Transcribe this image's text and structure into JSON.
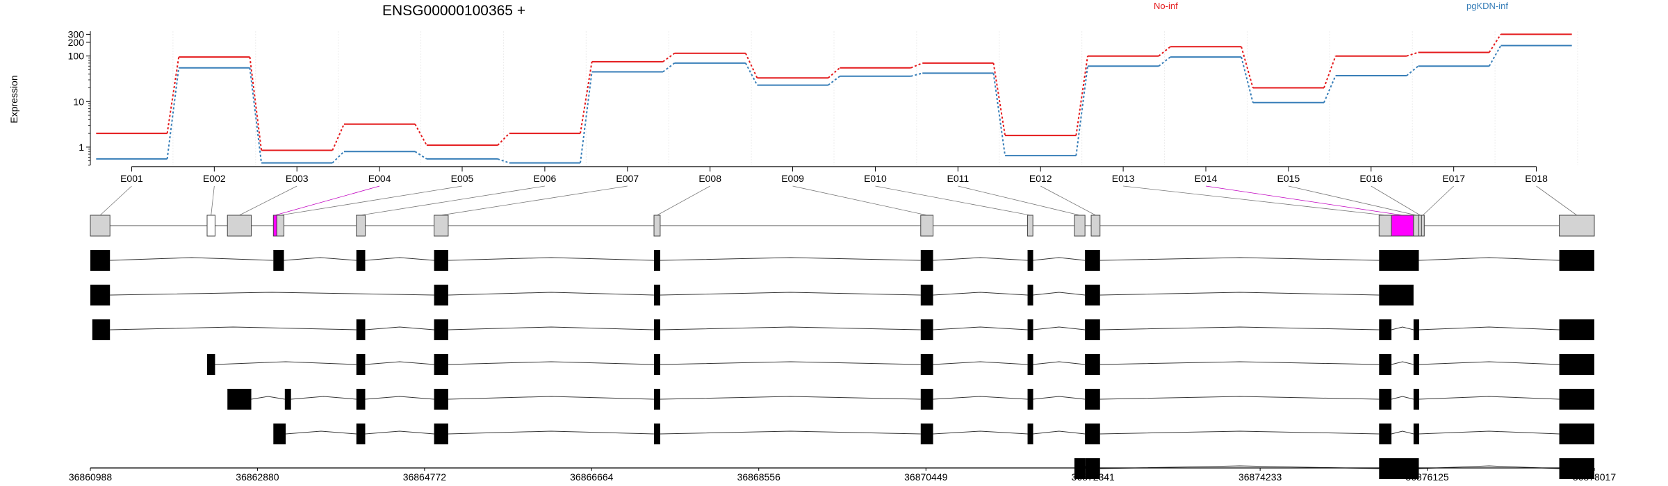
{
  "chart_data": {
    "type": "line",
    "title": "ENSG00000100365 +",
    "ylabel": "Expression",
    "yscale": "log",
    "ylim": [
      0.4,
      350
    ],
    "yticks": [
      1,
      10,
      100,
      200,
      300
    ],
    "categories": [
      "E001",
      "E002",
      "E003",
      "E004",
      "E005",
      "E006",
      "E007",
      "E008",
      "E009",
      "E010",
      "E011",
      "E012",
      "E013",
      "E014",
      "E015",
      "E016",
      "E017",
      "E018"
    ],
    "series": [
      {
        "name": "No-inf",
        "color": "#e41a1c",
        "values": [
          2.0,
          95,
          0.85,
          3.2,
          1.1,
          2.0,
          75,
          115,
          33,
          55,
          70,
          1.8,
          100,
          160,
          20,
          100,
          120,
          300
        ]
      },
      {
        "name": "pgKDN-inf",
        "color": "#377eb8",
        "values": [
          0.55,
          55,
          0.45,
          0.8,
          0.55,
          0.45,
          45,
          70,
          23,
          36,
          42,
          0.65,
          60,
          95,
          9.5,
          37,
          60,
          170
        ]
      }
    ],
    "legend_position": "top",
    "genomic_axis": {
      "min": 36860988,
      "max": 36878017,
      "ticks": [
        36860988,
        36862880,
        36864772,
        36866664,
        36868556,
        36870449,
        36872341,
        36874233,
        36876125,
        36878017
      ]
    },
    "exons": [
      {
        "id": "E001",
        "start": 36860988,
        "end": 36861210
      },
      {
        "id": "E002",
        "start": 36862310,
        "end": 36862400
      },
      {
        "id": "E003",
        "start": 36862540,
        "end": 36862810
      },
      {
        "id": "E004",
        "start": 36863060,
        "end": 36863100
      },
      {
        "id": "E005",
        "start": 36863100,
        "end": 36863180
      },
      {
        "id": "E006",
        "start": 36864000,
        "end": 36864100
      },
      {
        "id": "E007",
        "start": 36864880,
        "end": 36865040
      },
      {
        "id": "E008",
        "start": 36867370,
        "end": 36867440
      },
      {
        "id": "E009",
        "start": 36870390,
        "end": 36870530
      },
      {
        "id": "E010",
        "start": 36871600,
        "end": 36871660
      },
      {
        "id": "E011",
        "start": 36872130,
        "end": 36872250
      },
      {
        "id": "E012",
        "start": 36872320,
        "end": 36872420
      },
      {
        "id": "E013",
        "start": 36875580,
        "end": 36875720
      },
      {
        "id": "E014",
        "start": 36875720,
        "end": 36875970
      },
      {
        "id": "E015",
        "start": 36875970,
        "end": 36876030
      },
      {
        "id": "E016",
        "start": 36876030,
        "end": 36876060
      },
      {
        "id": "E017",
        "start": 36876060,
        "end": 36876080
      },
      {
        "id": "E018",
        "start": 36877620,
        "end": 36878017
      }
    ],
    "highlighted_exons": [
      "E004",
      "E014"
    ],
    "transcripts": [
      {
        "exons": [
          [
            36860988,
            36861210
          ],
          [
            36863060,
            36863180
          ],
          [
            36864000,
            36864100
          ],
          [
            36864880,
            36865040
          ],
          [
            36867370,
            36867440
          ],
          [
            36870390,
            36870530
          ],
          [
            36871600,
            36871660
          ],
          [
            36872250,
            36872420
          ],
          [
            36875580,
            36876030
          ],
          [
            36877620,
            36878017
          ]
        ]
      },
      {
        "exons": [
          [
            36860988,
            36861210
          ],
          [
            36864880,
            36865040
          ],
          [
            36867370,
            36867440
          ],
          [
            36870390,
            36870530
          ],
          [
            36871600,
            36871660
          ],
          [
            36872250,
            36872420
          ],
          [
            36875580,
            36875970
          ]
        ]
      },
      {
        "exons": [
          [
            36861010,
            36861210
          ],
          [
            36864000,
            36864100
          ],
          [
            36864880,
            36865040
          ],
          [
            36867370,
            36867440
          ],
          [
            36870390,
            36870530
          ],
          [
            36871600,
            36871660
          ],
          [
            36872250,
            36872420
          ],
          [
            36875580,
            36875720
          ],
          [
            36875970,
            36876030
          ],
          [
            36877620,
            36878017
          ]
        ]
      },
      {
        "exons": [
          [
            36862310,
            36862400
          ],
          [
            36864000,
            36864100
          ],
          [
            36864880,
            36865040
          ],
          [
            36867370,
            36867440
          ],
          [
            36870390,
            36870530
          ],
          [
            36871600,
            36871660
          ],
          [
            36872250,
            36872420
          ],
          [
            36875580,
            36875720
          ],
          [
            36875970,
            36876030
          ],
          [
            36877620,
            36878017
          ]
        ]
      },
      {
        "exons": [
          [
            36862540,
            36862810
          ],
          [
            36863190,
            36863260
          ],
          [
            36864000,
            36864100
          ],
          [
            36864880,
            36865040
          ],
          [
            36867370,
            36867440
          ],
          [
            36870390,
            36870530
          ],
          [
            36871600,
            36871660
          ],
          [
            36872250,
            36872420
          ],
          [
            36875580,
            36875720
          ],
          [
            36875970,
            36876030
          ],
          [
            36877620,
            36878017
          ]
        ]
      },
      {
        "exons": [
          [
            36863060,
            36863200
          ],
          [
            36864000,
            36864100
          ],
          [
            36864880,
            36865040
          ],
          [
            36867370,
            36867440
          ],
          [
            36870390,
            36870530
          ],
          [
            36871600,
            36871660
          ],
          [
            36872250,
            36872420
          ],
          [
            36875580,
            36875720
          ],
          [
            36875970,
            36876030
          ],
          [
            36877620,
            36878017
          ]
        ]
      },
      {
        "exons": [
          [
            36872130,
            36872250
          ],
          [
            36872250,
            36872420
          ],
          [
            36875580,
            36876030
          ],
          [
            36877620,
            36878017
          ]
        ]
      }
    ]
  }
}
